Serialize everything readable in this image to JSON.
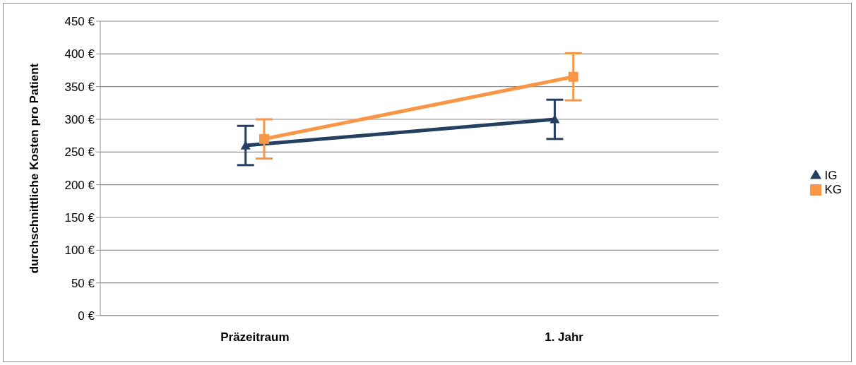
{
  "chart_data": {
    "type": "line",
    "ylabel": "durchschnittliche Kosten pro Patient",
    "categories": [
      "Präzeitraum",
      "1. Jahr"
    ],
    "series": [
      {
        "name": "IG",
        "color": "#243f60",
        "marker": "triangle",
        "values": [
          260,
          300
        ],
        "errors": [
          30,
          30
        ]
      },
      {
        "name": "KG",
        "color": "#f79646",
        "marker": "square",
        "values": [
          270,
          365
        ],
        "errors": [
          30,
          36
        ]
      }
    ],
    "ylim": [
      0,
      450
    ],
    "yticks": [
      {
        "value": 0,
        "label": "0 €"
      },
      {
        "value": 50,
        "label": "50 €"
      },
      {
        "value": 100,
        "label": "100 €"
      },
      {
        "value": 150,
        "label": "150 €"
      },
      {
        "value": 200,
        "label": "200 €"
      },
      {
        "value": 250,
        "label": "250 €"
      },
      {
        "value": 300,
        "label": "300 €"
      },
      {
        "value": 350,
        "label": "350 €"
      },
      {
        "value": 400,
        "label": "400 €"
      },
      {
        "value": 450,
        "label": "450 €"
      }
    ],
    "grid": "y",
    "legend": "right"
  }
}
